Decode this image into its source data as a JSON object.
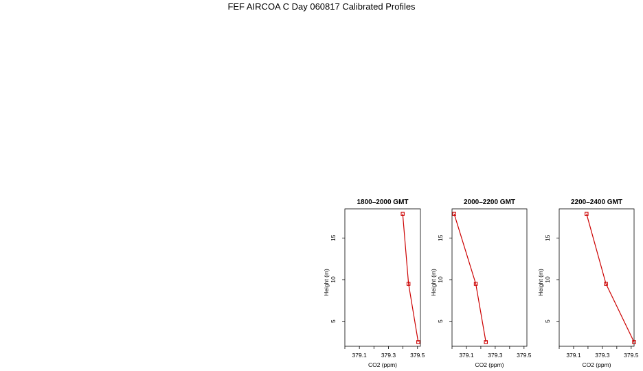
{
  "title": "FEF AIRCOA C  Day 060817  Calibrated Profiles",
  "chart_data": [
    {
      "type": "line",
      "title": "1800–2000 GMT",
      "xlabel": "CO2 (ppm)",
      "ylabel": "Height (m)",
      "xlim": [
        379.0,
        379.52
      ],
      "ylim": [
        2,
        18.5
      ],
      "xticks": [
        379.0,
        379.1,
        379.2,
        379.3,
        379.4,
        379.5
      ],
      "xtick_labels": [
        "",
        "379.1",
        "",
        "379.3",
        "",
        "379.5"
      ],
      "yticks": [
        5,
        10,
        15
      ],
      "ytick_labels": [
        "5",
        "10",
        "15"
      ],
      "series": [
        {
          "x": [
            379.398,
            379.438,
            379.505
          ],
          "y": [
            17.9,
            9.5,
            2.5
          ]
        }
      ],
      "color": "#cc0000",
      "grid": false
    },
    {
      "type": "line",
      "title": "2000–2200 GMT",
      "xlabel": "CO2 (ppm)",
      "ylabel": "Height (m)",
      "xlim": [
        379.0,
        379.52
      ],
      "ylim": [
        2,
        18.5
      ],
      "xticks": [
        379.0,
        379.1,
        379.2,
        379.3,
        379.4,
        379.5
      ],
      "xtick_labels": [
        "",
        "379.1",
        "",
        "379.3",
        "",
        "379.5"
      ],
      "yticks": [
        5,
        10,
        15
      ],
      "ytick_labels": [
        "5",
        "10",
        "15"
      ],
      "series": [
        {
          "x": [
            379.015,
            379.165,
            379.235
          ],
          "y": [
            17.9,
            9.5,
            2.5
          ]
        }
      ],
      "color": "#cc0000",
      "grid": false
    },
    {
      "type": "line",
      "title": "2200–2400 GMT",
      "xlabel": "CO2 (ppm)",
      "ylabel": "Height (m)",
      "xlim": [
        379.0,
        379.52
      ],
      "ylim": [
        2,
        18.5
      ],
      "xticks": [
        379.0,
        379.1,
        379.2,
        379.3,
        379.4,
        379.5
      ],
      "xtick_labels": [
        "",
        "379.1",
        "",
        "379.3",
        "",
        "379.5"
      ],
      "yticks": [
        5,
        10,
        15
      ],
      "ytick_labels": [
        "5",
        "10",
        "15"
      ],
      "series": [
        {
          "x": [
            379.19,
            379.325,
            379.52
          ],
          "y": [
            17.9,
            9.5,
            2.5
          ]
        }
      ],
      "color": "#cc0000",
      "grid": false
    }
  ]
}
